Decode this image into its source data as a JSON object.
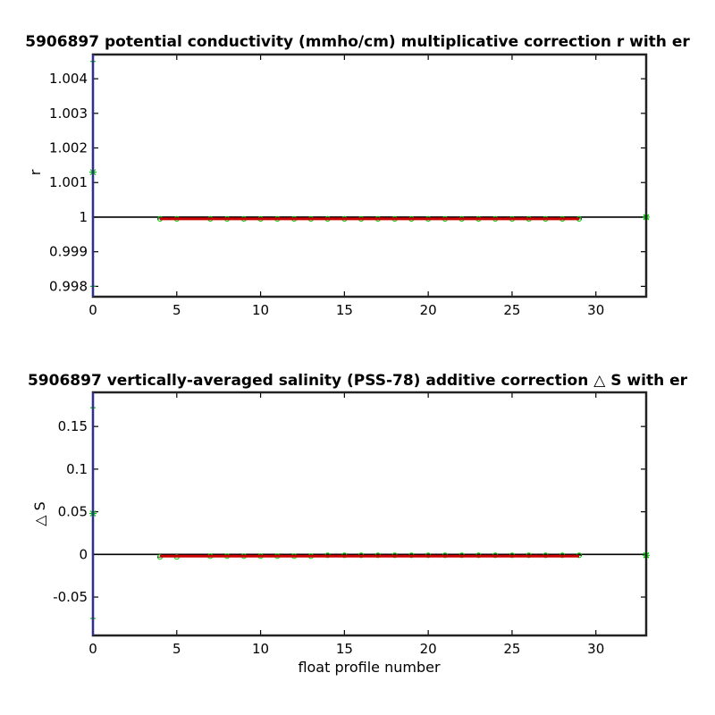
{
  "chart_data": [
    {
      "type": "scatter",
      "title": "5906897 potential conductivity (mmho/cm) multiplicative correction r with er",
      "xlabel": "",
      "ylabel": "r",
      "xlim": [
        0,
        33
      ],
      "ylim": [
        0.9977,
        1.0047
      ],
      "xticks": [
        "0",
        "5",
        "10",
        "15",
        "20",
        "25",
        "30"
      ],
      "yticks": [
        "0.998",
        "0.999",
        "1",
        "1.001",
        "1.002",
        "1.003",
        "1.004"
      ],
      "reference_line": 1,
      "series": [
        {
          "kind": "errorbar",
          "color": "#00cc00",
          "points": [
            {
              "x": 0,
              "y": 1.0013,
              "lo": 0.998,
              "hi": 1.0045
            },
            {
              "x": 33,
              "y": 1.0,
              "lo": 0.99995,
              "hi": 1.00005
            }
          ]
        },
        {
          "kind": "markers",
          "color": "#00cc00",
          "x": [
            4,
            5,
            7,
            8,
            9,
            10,
            11,
            12,
            13,
            14,
            15,
            16,
            17,
            18,
            19,
            20,
            21,
            22,
            23,
            24,
            25,
            26,
            27,
            28,
            29
          ],
          "y": [
            0.99995,
            0.99995,
            0.99995,
            0.99995,
            0.99995,
            0.99995,
            0.99995,
            0.99995,
            0.99995,
            0.99995,
            0.99995,
            0.99995,
            0.99995,
            0.99995,
            0.99995,
            0.99995,
            0.99995,
            0.99995,
            0.99995,
            0.99995,
            0.99995,
            0.99995,
            0.99995,
            0.99995,
            0.99995
          ]
        },
        {
          "kind": "line",
          "color": "#cc0000",
          "x": [
            4,
            29
          ],
          "y": [
            0.99995,
            0.99995
          ]
        }
      ]
    },
    {
      "type": "scatter",
      "title": "5906897 vertically-averaged salinity (PSS-78) additive correction △ S with er",
      "xlabel": "float profile number",
      "ylabel": "△ S",
      "xlim": [
        0,
        33
      ],
      "ylim": [
        -0.095,
        0.19
      ],
      "xticks": [
        "0",
        "5",
        "10",
        "15",
        "20",
        "25",
        "30"
      ],
      "yticks": [
        "-0.05",
        "0",
        "0.05",
        "0.1",
        "0.15"
      ],
      "reference_line": 0,
      "series": [
        {
          "kind": "errorbar",
          "color": "#00cc00",
          "points": [
            {
              "x": 0,
              "y": 0.048,
              "lo": -0.075,
              "hi": 0.172
            },
            {
              "x": 33,
              "y": -0.001,
              "lo": -0.003,
              "hi": 0.001
            }
          ]
        },
        {
          "kind": "markers",
          "color": "#00cc00",
          "x": [
            4,
            5,
            7,
            8,
            9,
            10,
            11,
            12,
            13,
            14,
            15,
            16,
            17,
            18,
            19,
            20,
            21,
            22,
            23,
            24,
            25,
            26,
            27,
            28,
            29
          ],
          "y": [
            -0.003,
            -0.003,
            -0.002,
            -0.002,
            -0.002,
            -0.002,
            -0.002,
            -0.002,
            -0.002,
            -0.001,
            -0.001,
            -0.001,
            -0.001,
            -0.001,
            -0.001,
            -0.001,
            -0.001,
            -0.001,
            -0.001,
            -0.001,
            -0.001,
            -0.001,
            -0.001,
            -0.001,
            -0.001
          ]
        },
        {
          "kind": "line",
          "color": "#cc0000",
          "x": [
            4,
            29
          ],
          "y": [
            -0.002,
            -0.002
          ]
        }
      ]
    }
  ]
}
